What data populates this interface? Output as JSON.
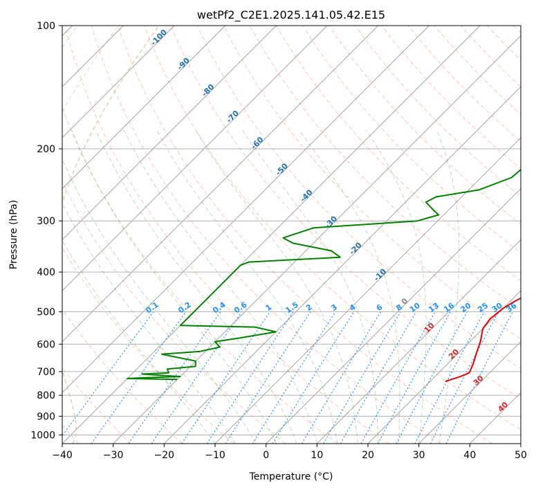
{
  "chart_data": {
    "type": "line",
    "title": "wetPf2_C2E1.2025.141.05.42.E15",
    "xlabel": "Temperature (°C)",
    "ylabel": "Pressure (hPa)",
    "xlim": [
      -40,
      50
    ],
    "ylim": [
      1050,
      100
    ],
    "y_scale": "log",
    "x_ticks": [
      -40,
      -30,
      -20,
      -10,
      0,
      10,
      20,
      30,
      40,
      50
    ],
    "y_ticks": [
      100,
      200,
      300,
      400,
      500,
      600,
      700,
      800,
      900,
      1000
    ],
    "grid": true,
    "colors": {
      "temperature": "#e60000",
      "dewpoint": "#008000",
      "isotherm": "#999999",
      "dry_adiabat": "#ff7f50",
      "moist_adiabat": "#2ca02c",
      "mixing_ratio": "#1e90ff",
      "theta_e": "#d2b48c",
      "isotherm_label": "#1f6fb2",
      "dry_adiabat_label": "#d62728",
      "mixing_label": "#1e90ff"
    },
    "series": [
      {
        "points": [
          [
            2,
            100
          ],
          [
            0,
            118
          ],
          [
            -1,
            135
          ],
          [
            -1,
            150
          ],
          [
            0.5,
            175
          ],
          [
            3,
            210
          ],
          [
            6.5,
            250
          ],
          [
            9.5,
            285
          ],
          [
            13,
            320
          ],
          [
            17,
            350
          ],
          [
            19.5,
            375
          ],
          [
            22,
            395
          ],
          [
            23.5,
            420
          ],
          [
            22.5,
            450
          ],
          [
            21,
            470
          ],
          [
            20,
            490
          ],
          [
            19.5,
            520
          ],
          [
            20,
            550
          ],
          [
            22,
            590
          ],
          [
            23.5,
            630
          ],
          [
            25,
            670
          ],
          [
            26,
            705
          ],
          [
            25,
            720
          ],
          [
            23,
            740
          ]
        ]
      },
      {
        "points": [
          [
            -2,
            100
          ],
          [
            -2.5,
            110
          ],
          [
            -2.5,
            125
          ],
          [
            -3,
            140
          ],
          [
            -3.5,
            165
          ],
          [
            -3,
            190
          ],
          [
            -3.5,
            215
          ],
          [
            -4,
            235
          ],
          [
            -8,
            252
          ],
          [
            -15,
            262
          ],
          [
            -16,
            270
          ],
          [
            -13,
            282
          ],
          [
            -11,
            290
          ],
          [
            -14,
            300
          ],
          [
            -33,
            312
          ],
          [
            -37,
            330
          ],
          [
            -34,
            340
          ],
          [
            -25,
            355
          ],
          [
            -22,
            368
          ],
          [
            -39,
            378
          ],
          [
            -40,
            385
          ],
          [
            -40,
            540
          ],
          [
            -25,
            545
          ],
          [
            -20,
            560
          ],
          [
            -26,
            580
          ],
          [
            -30,
            592
          ],
          [
            -28,
            610
          ],
          [
            -31,
            625
          ],
          [
            -38,
            635
          ],
          [
            -30,
            660
          ],
          [
            -29,
            680
          ],
          [
            -34,
            690
          ],
          [
            -33,
            705
          ],
          [
            -38,
            710
          ],
          [
            -30,
            720
          ],
          [
            -37,
            725
          ],
          [
            -40,
            728
          ],
          [
            -30,
            732
          ]
        ]
      }
    ],
    "isotherm_labels": [
      -100,
      -90,
      -80,
      -70,
      -60,
      -50,
      -40,
      -30,
      -20,
      -10,
      0,
      10,
      20,
      30,
      40
    ],
    "mixing_ratio_labels": [
      "0.1",
      "0.2",
      "0.4",
      "0.6",
      "1",
      "1.5",
      "2",
      "3",
      "4",
      "6",
      "8",
      "10",
      "13",
      "16",
      "20",
      "25",
      "30",
      "36"
    ],
    "dry_adiabat_labels": [
      "10",
      "20",
      "30",
      "40"
    ]
  }
}
